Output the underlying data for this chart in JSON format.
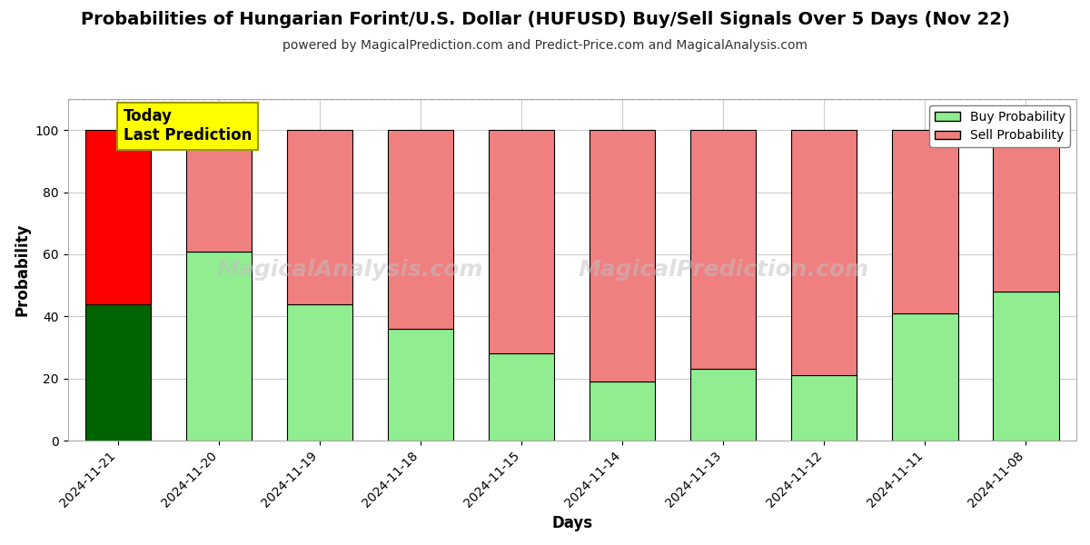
{
  "title": "Probabilities of Hungarian Forint/U.S. Dollar (HUFUSD) Buy/Sell Signals Over 5 Days (Nov 22)",
  "subtitle": "powered by MagicalPrediction.com and Predict-Price.com and MagicalAnalysis.com",
  "xlabel": "Days",
  "ylabel": "Probability",
  "categories": [
    "2024-11-21",
    "2024-11-20",
    "2024-11-19",
    "2024-11-18",
    "2024-11-15",
    "2024-11-14",
    "2024-11-13",
    "2024-11-12",
    "2024-11-11",
    "2024-11-08"
  ],
  "buy_values": [
    44,
    61,
    44,
    36,
    28,
    19,
    23,
    21,
    41,
    48
  ],
  "sell_values": [
    56,
    39,
    56,
    64,
    72,
    81,
    77,
    79,
    59,
    52
  ],
  "today_index": 0,
  "today_buy_color": "#006400",
  "today_sell_color": "#ff0000",
  "normal_buy_color": "#90EE90",
  "normal_sell_color": "#F08080",
  "bar_edge_color": "#000000",
  "ylim": [
    0,
    110
  ],
  "yticks": [
    0,
    20,
    40,
    60,
    80,
    100
  ],
  "dashed_line_y": 110,
  "today_label_text": "Today\nLast Prediction",
  "today_label_bg": "#ffff00",
  "legend_buy_label": "Buy Probability",
  "legend_sell_label": "Sell Probability",
  "title_fontsize": 14,
  "subtitle_fontsize": 10,
  "axis_label_fontsize": 12,
  "tick_fontsize": 10,
  "background_color": "#ffffff",
  "grid_color": "#cccccc"
}
